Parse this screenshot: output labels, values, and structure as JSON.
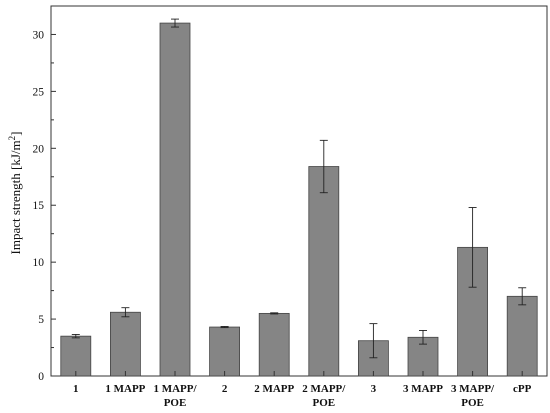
{
  "chart_data": {
    "type": "bar",
    "title": "",
    "xlabel": "",
    "ylabel": "Impact strength [kJ/m",
    "ylabel_superscript": "2",
    "ylabel_close": "]",
    "ylim": [
      0,
      32.5
    ],
    "yticks": [
      0,
      5,
      10,
      15,
      20,
      25,
      30
    ],
    "grid": false,
    "legend": "none",
    "bar_color": "#858585",
    "bar_edge_color": "#444444",
    "categories": [
      [
        "1"
      ],
      [
        "1 MAPP"
      ],
      [
        "1 MAPP/",
        "POE"
      ],
      [
        "2"
      ],
      [
        "2 MAPP"
      ],
      [
        "2 MAPP/",
        "POE"
      ],
      [
        "3"
      ],
      [
        "3 MAPP"
      ],
      [
        "3 MAPP/",
        "POE"
      ],
      [
        "cPP"
      ]
    ],
    "values": [
      3.5,
      5.6,
      31.0,
      4.3,
      5.5,
      18.4,
      3.1,
      3.4,
      11.3,
      7.0
    ],
    "errors": [
      0.15,
      0.4,
      0.35,
      0.05,
      0.05,
      2.3,
      1.5,
      0.6,
      3.5,
      0.75
    ]
  }
}
